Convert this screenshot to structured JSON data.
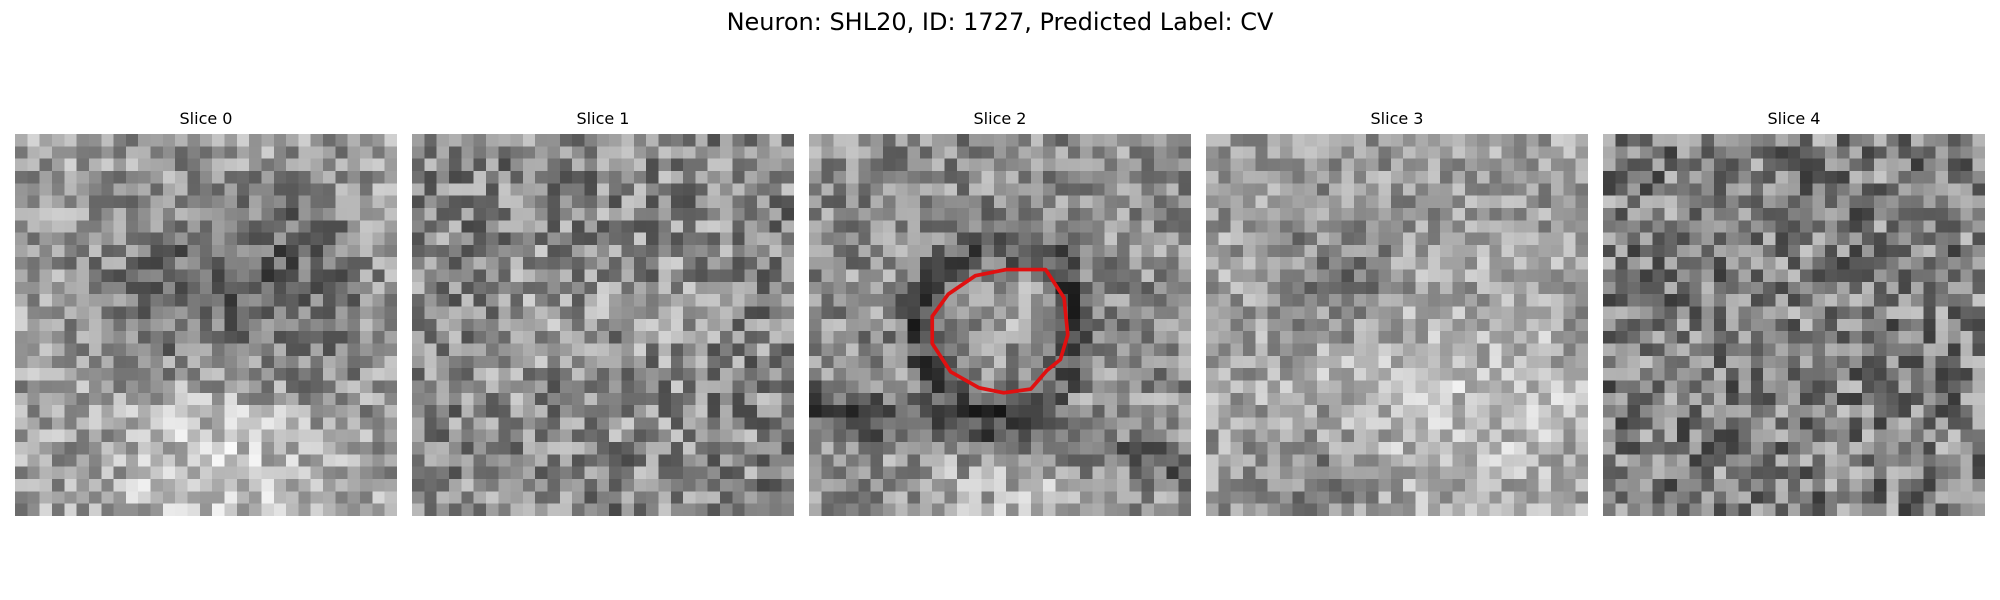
{
  "figure": {
    "title": "Neuron: SHL20, ID: 1727, Predicted Label: CV"
  },
  "panels": [
    {
      "title": "Slice 0"
    },
    {
      "title": "Slice 1"
    },
    {
      "title": "Slice 2"
    },
    {
      "title": "Slice 3"
    },
    {
      "title": "Slice 4"
    }
  ],
  "image": {
    "colormap": "grayscale",
    "grid": "31x31",
    "contour_color": "#e01010",
    "contour_slice": "Slice 2"
  }
}
